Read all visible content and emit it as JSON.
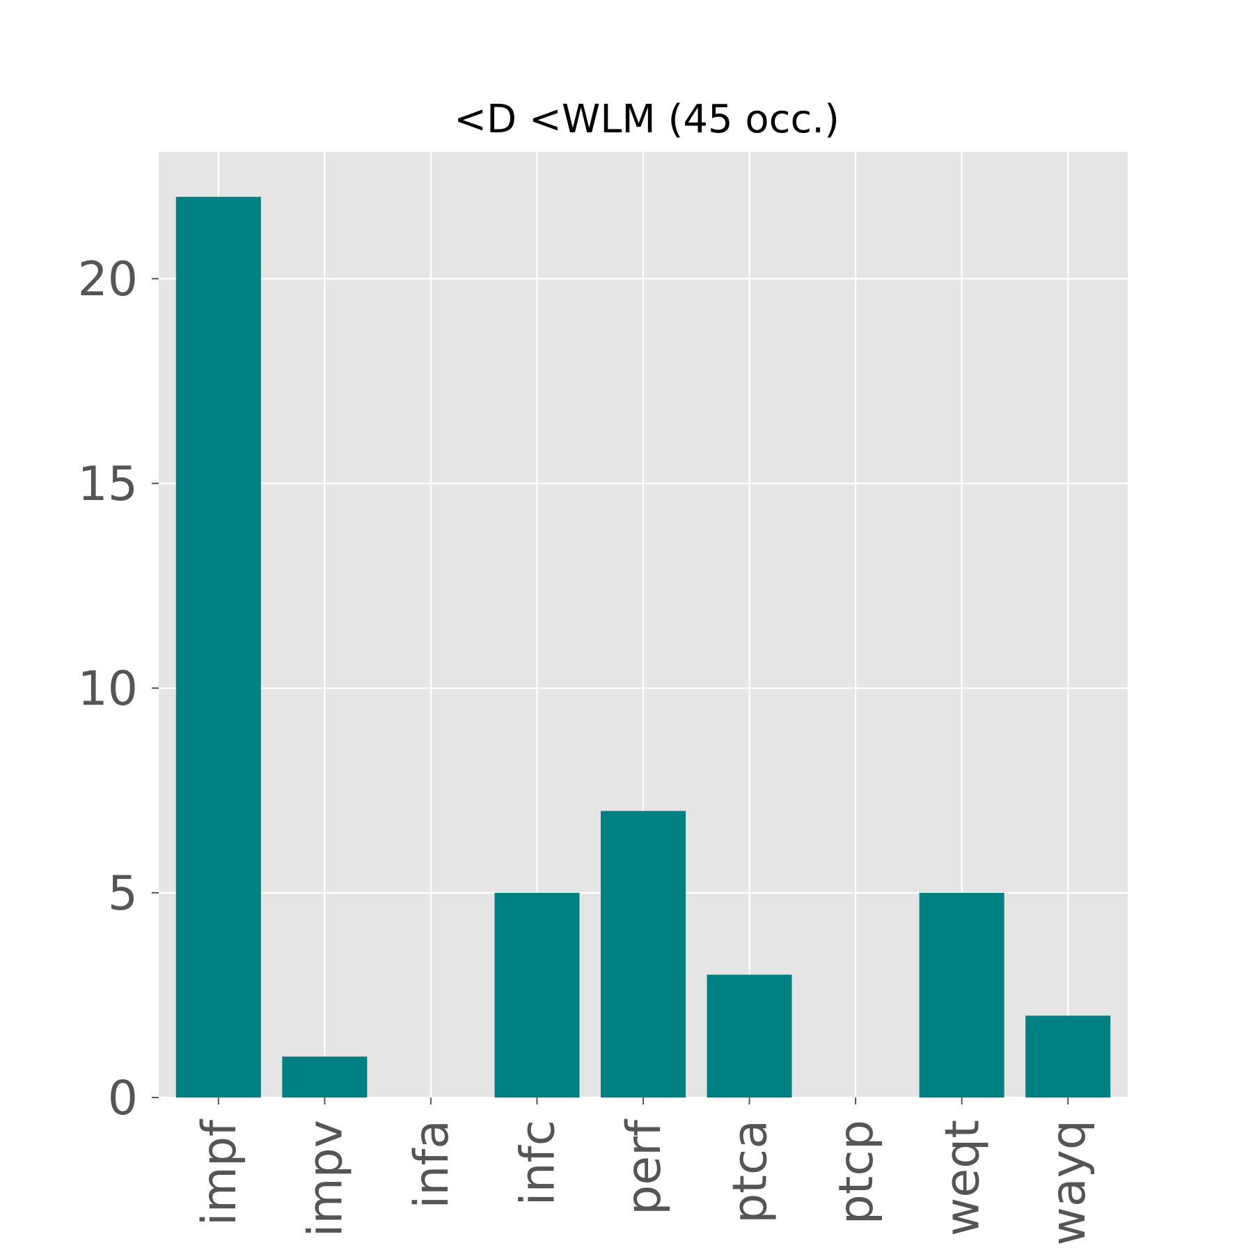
{
  "chart_data": {
    "type": "bar",
    "title": "<D <WLM (45 occ.)",
    "xlabel": "",
    "ylabel": "",
    "categories": [
      "impf",
      "impv",
      "infa",
      "infc",
      "perf",
      "ptca",
      "ptcp",
      "weqt",
      "wayq"
    ],
    "values": [
      22,
      1,
      0,
      5,
      7,
      3,
      0,
      5,
      2
    ],
    "ylim": [
      0,
      23.1
    ],
    "yticks": [
      0,
      5,
      10,
      15,
      20
    ],
    "grid": true,
    "legend": "none",
    "colors": {
      "bar": "#008080",
      "plot_background": "#e5e5e5",
      "grid": "#ffffff",
      "tick_label": "#555555",
      "title": "#000000"
    }
  }
}
